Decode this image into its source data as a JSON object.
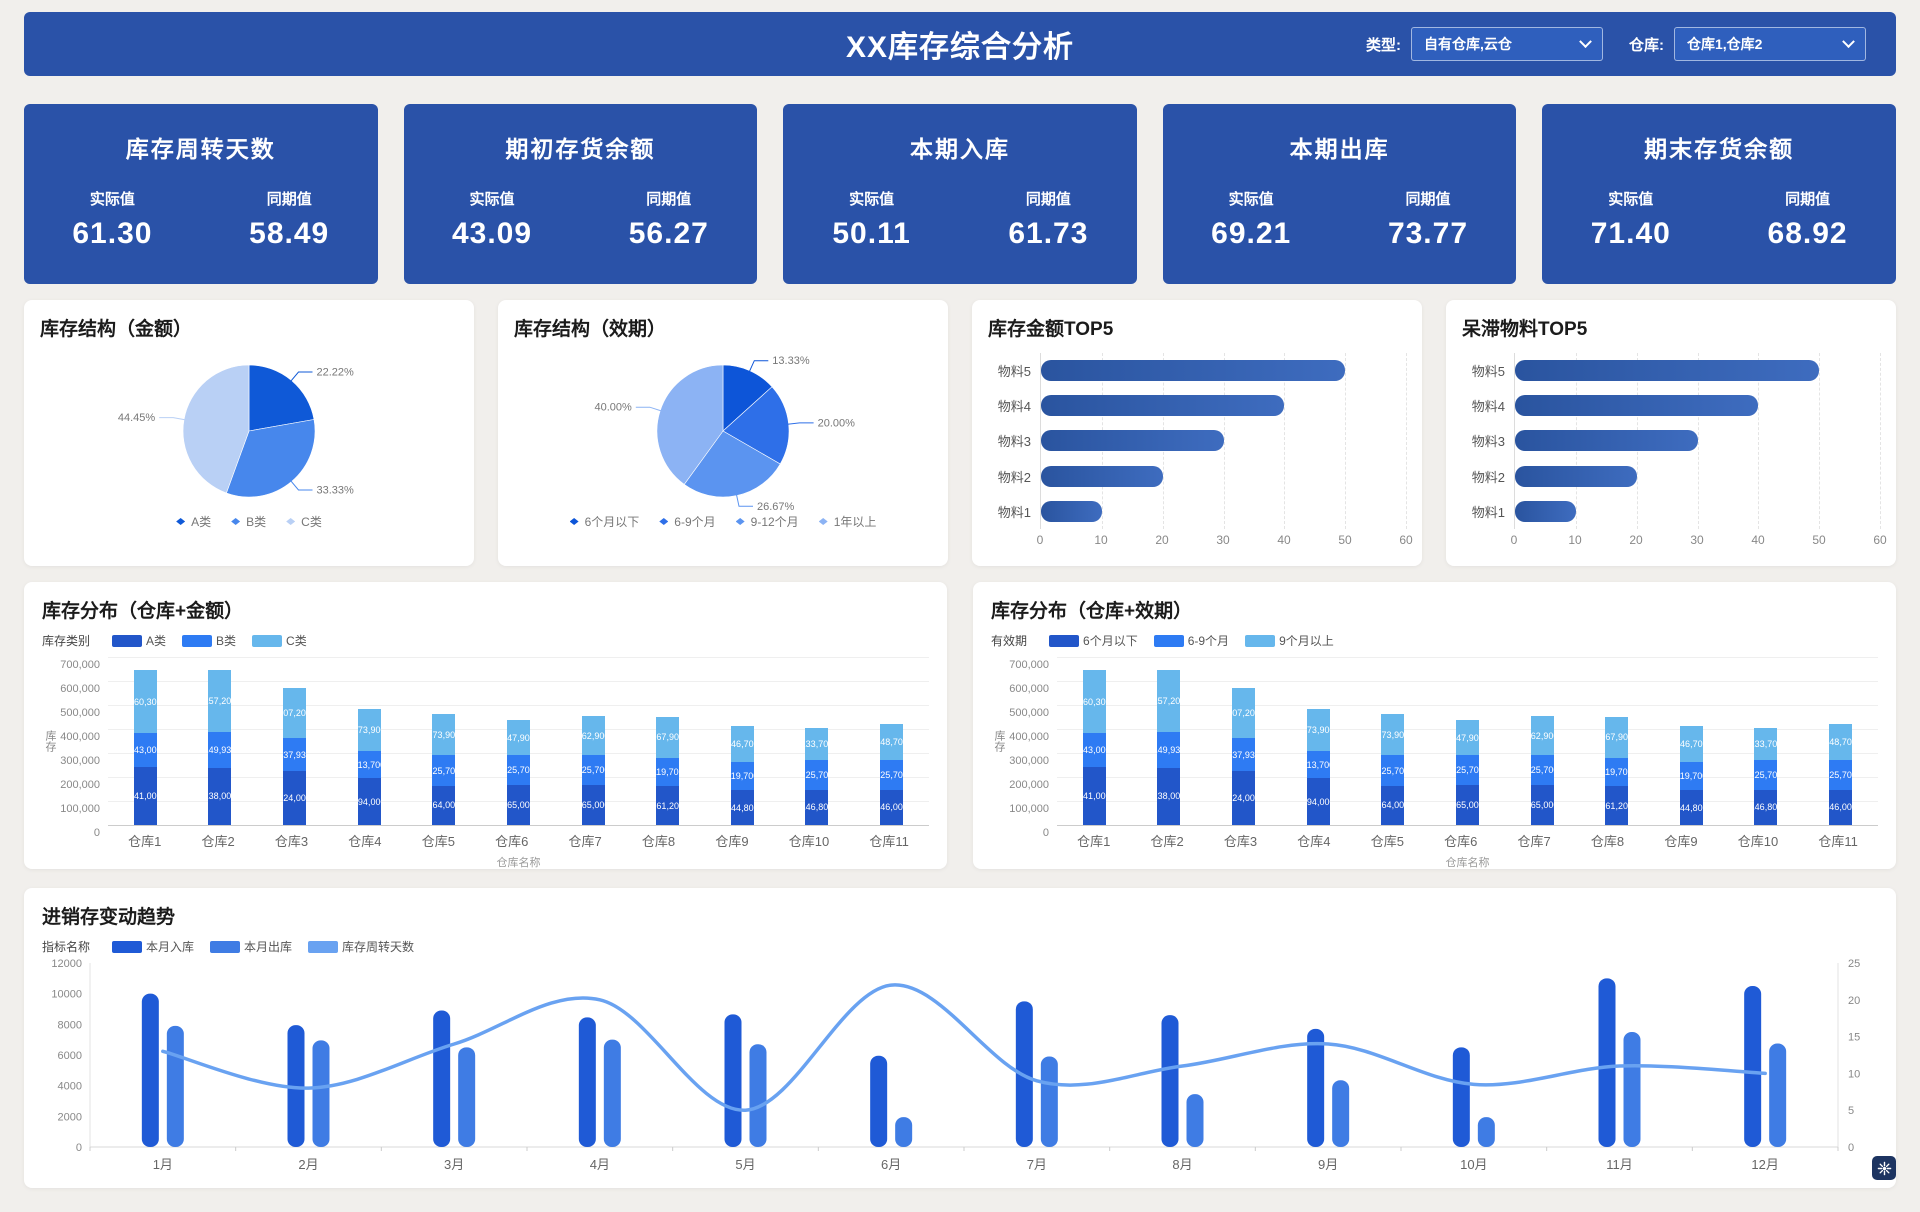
{
  "header": {
    "title": "XX库存综合分析",
    "filters": [
      {
        "label": "类型:",
        "value": "自有仓库,云仓"
      },
      {
        "label": "仓库:",
        "value": "仓库1,仓库2"
      }
    ]
  },
  "kpi": {
    "actual_label": "实际值",
    "period_label": "同期值",
    "cards": [
      {
        "title": "库存周转天数",
        "actual": "61.30",
        "period": "58.49"
      },
      {
        "title": "期初存货余额",
        "actual": "43.09",
        "period": "56.27"
      },
      {
        "title": "本期入库",
        "actual": "50.11",
        "period": "61.73"
      },
      {
        "title": "本期出库",
        "actual": "69.21",
        "period": "73.77"
      },
      {
        "title": "期末存货余额",
        "actual": "71.40",
        "period": "68.92"
      }
    ]
  },
  "colors": {
    "primary": "#2a52a8",
    "page_bg": "#f1efec"
  },
  "chart_data": [
    {
      "type": "pie",
      "title": "库存结构（金额）",
      "labels": [
        "A类",
        "B类",
        "C类"
      ],
      "values": [
        22.22,
        33.33,
        44.45
      ],
      "value_suffix": "%",
      "colors": [
        "#0f59d7",
        "#4787ec",
        "#b9d0f5"
      ],
      "legend_position": "bottom"
    },
    {
      "type": "pie",
      "title": "库存结构（效期）",
      "labels": [
        "6个月以下",
        "6-9个月",
        "9-12个月",
        "1年以上"
      ],
      "values": [
        13.33,
        20.0,
        26.67,
        40.0
      ],
      "value_suffix": "%",
      "colors": [
        "#0d55d8",
        "#2e6fe8",
        "#5b94f0",
        "#8cb3f4"
      ],
      "legend_position": "bottom"
    },
    {
      "type": "bar",
      "orientation": "horizontal",
      "title": "库存金额TOP5",
      "categories": [
        "物料5",
        "物料4",
        "物料3",
        "物料2",
        "物料1"
      ],
      "values": [
        50,
        40,
        30,
        20,
        10
      ],
      "xlim": [
        0,
        60
      ],
      "xticks": [
        0,
        10,
        20,
        30,
        40,
        50,
        60
      ],
      "grid": "dashed-vertical",
      "bar_color": "#2e5cae"
    },
    {
      "type": "bar",
      "orientation": "horizontal",
      "title": "呆滞物料TOP5",
      "categories": [
        "物料5",
        "物料4",
        "物料3",
        "物料2",
        "物料1"
      ],
      "values": [
        50,
        40,
        30,
        20,
        10
      ],
      "xlim": [
        0,
        60
      ],
      "xticks": [
        0,
        10,
        20,
        30,
        40,
        50,
        60
      ],
      "grid": "dashed-vertical",
      "bar_color": "#2e5cae"
    },
    {
      "type": "stacked-bar",
      "title": "库存分布（仓库+金额）",
      "legend_title": "库存类别",
      "categories": [
        "仓库1",
        "仓库2",
        "仓库3",
        "仓库4",
        "仓库5",
        "仓库6",
        "仓库7",
        "仓库8",
        "仓库9",
        "仓库10",
        "仓库11"
      ],
      "series": [
        {
          "name": "A类",
          "color": "#2256c9",
          "values": [
            241000,
            238000,
            224000,
            194000,
            164000,
            165000,
            165000,
            161200,
            144800,
            146800,
            146000
          ]
        },
        {
          "name": "B类",
          "color": "#2e7bf3",
          "values": [
            143000,
            149930,
            137930,
            113700,
            125700,
            125700,
            125700,
            119700,
            119700,
            125700,
            125700
          ]
        },
        {
          "name": "C类",
          "color": "#66b7ec",
          "values": [
            260300,
            257200,
            207200,
            173900,
            173900,
            147900,
            162900,
            167900,
            146700,
            133700,
            148700
          ]
        }
      ],
      "ylabel": "库存",
      "xlabel": "仓库名称",
      "ylim": [
        0,
        700000
      ],
      "ytick_step": 100000
    },
    {
      "type": "stacked-bar",
      "title": "库存分布（仓库+效期）",
      "legend_title": "有效期",
      "categories": [
        "仓库1",
        "仓库2",
        "仓库3",
        "仓库4",
        "仓库5",
        "仓库6",
        "仓库7",
        "仓库8",
        "仓库9",
        "仓库10",
        "仓库11"
      ],
      "series": [
        {
          "name": "6个月以下",
          "color": "#2256c9",
          "values": [
            241000,
            238000,
            224000,
            194000,
            164000,
            165000,
            165000,
            161200,
            144800,
            146800,
            146000
          ]
        },
        {
          "name": "6-9个月",
          "color": "#2e7bf3",
          "values": [
            143000,
            149930,
            137930,
            113700,
            125700,
            125700,
            125700,
            119700,
            119700,
            125700,
            125700
          ]
        },
        {
          "name": "9个月以上",
          "color": "#66b7ec",
          "values": [
            260300,
            257200,
            207200,
            173900,
            173900,
            147900,
            162900,
            167900,
            146700,
            133700,
            148700
          ]
        }
      ],
      "ylabel": "库存",
      "xlabel": "仓库名称",
      "ylim": [
        0,
        700000
      ],
      "ytick_step": 100000
    },
    {
      "type": "combo",
      "title": "进销存变动趋势",
      "legend_title": "指标名称",
      "categories": [
        "1月",
        "2月",
        "3月",
        "4月",
        "5月",
        "6月",
        "7月",
        "8月",
        "9月",
        "10月",
        "11月",
        "12月"
      ],
      "bar_series": [
        {
          "name": "本月入库",
          "color": "#1f5ad6",
          "axis": "left",
          "values": [
            10000,
            7950,
            8900,
            8450,
            8650,
            5950,
            9500,
            8600,
            7700,
            6500,
            11000,
            10500
          ]
        },
        {
          "name": "本月出库",
          "color": "#3f7ce4",
          "axis": "left",
          "values": [
            7900,
            6950,
            6500,
            7000,
            6700,
            1950,
            5900,
            3450,
            4350,
            1950,
            7500,
            6750
          ]
        }
      ],
      "line_series": [
        {
          "name": "库存周转天数",
          "color": "#69a2f1",
          "axis": "right",
          "values": [
            13,
            8,
            14,
            20,
            5,
            22,
            9,
            11,
            14,
            8.5,
            11,
            10
          ]
        }
      ],
      "left_ylim": [
        0,
        12000
      ],
      "left_ytick_step": 2000,
      "right_ylim": [
        0,
        25
      ],
      "right_ytick_step": 5
    }
  ]
}
